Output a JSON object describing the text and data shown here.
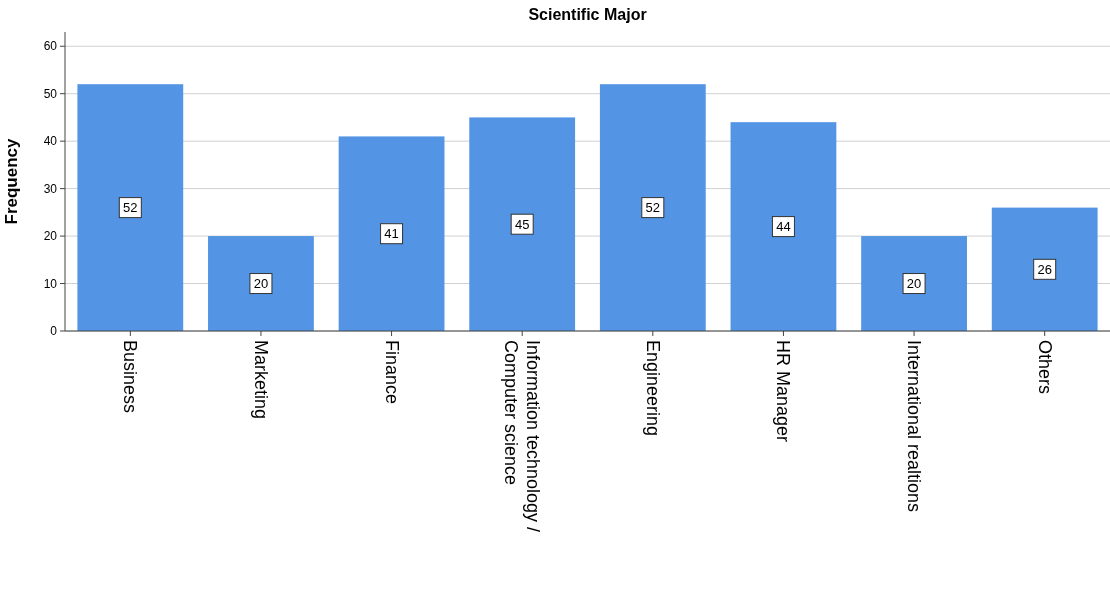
{
  "chart_data": {
    "type": "bar",
    "title": "Scientific Major",
    "ylabel": "Frequency",
    "categories": [
      "Business",
      "Marketing",
      "Finance",
      "Information technology / Computer science",
      "Engineering",
      "HR Manager",
      "International realtions",
      "Others"
    ],
    "values": [
      52,
      20,
      41,
      45,
      52,
      44,
      20,
      26
    ],
    "color": "#5394e4",
    "ylim": [
      0,
      63
    ],
    "yticks": [
      0,
      10,
      20,
      30,
      40,
      50,
      60
    ],
    "grid": "y",
    "data_labels": true
  }
}
